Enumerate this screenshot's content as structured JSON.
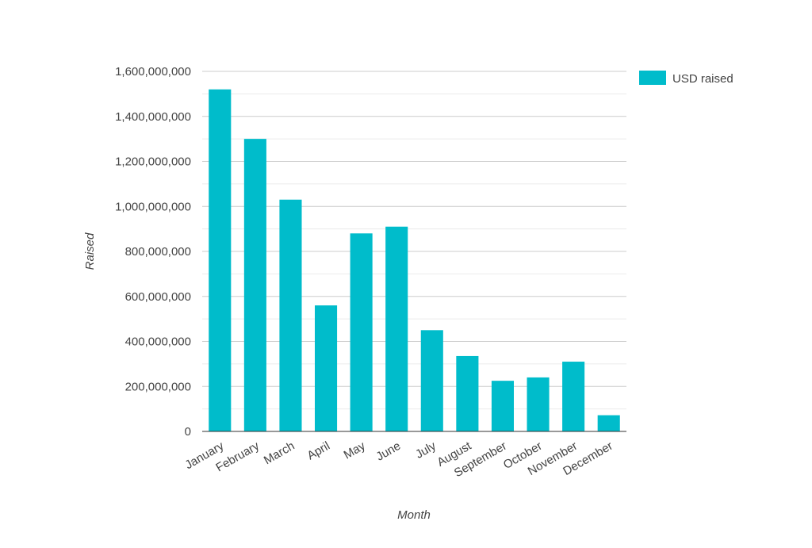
{
  "chart_data": {
    "type": "bar",
    "title": "",
    "xlabel": "Month",
    "ylabel": "Raised",
    "categories": [
      "January",
      "February",
      "March",
      "April",
      "May",
      "June",
      "July",
      "August",
      "September",
      "October",
      "November",
      "December"
    ],
    "series": [
      {
        "name": "USD raised",
        "color": "#00BCCB",
        "values": [
          1520000000,
          1300000000,
          1030000000,
          560000000,
          880000000,
          910000000,
          450000000,
          335000000,
          225000000,
          240000000,
          310000000,
          72000000
        ]
      }
    ],
    "ylim": [
      0,
      1600000000
    ],
    "yticks": [
      "0",
      "200,000,000",
      "400,000,000",
      "600,000,000",
      "800,000,000",
      "1,000,000,000",
      "1,200,000,000",
      "1,400,000,000",
      "1,600,000,000"
    ],
    "grid": true,
    "legend_position": "top-right"
  }
}
